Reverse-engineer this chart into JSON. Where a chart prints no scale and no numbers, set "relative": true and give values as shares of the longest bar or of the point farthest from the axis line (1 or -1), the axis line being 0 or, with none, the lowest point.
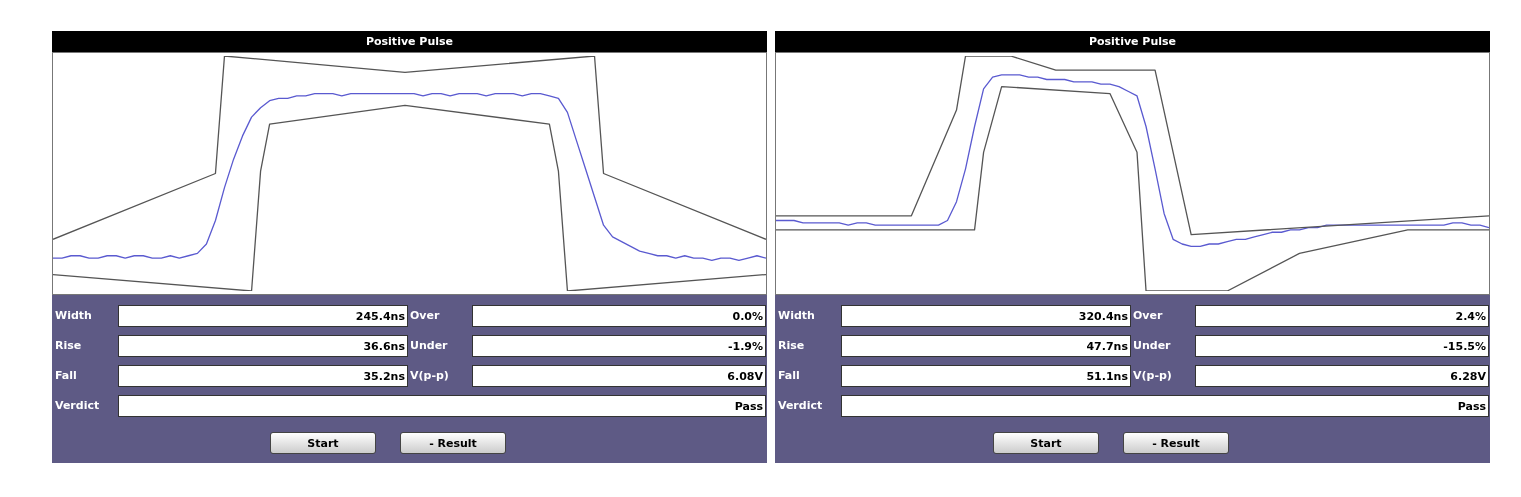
{
  "chart_data": [
    {
      "type": "line",
      "title": "Positive Pulse",
      "relative": true,
      "categories": [
        null,
        null,
        null,
        null,
        null,
        null,
        null,
        null,
        null,
        null,
        null,
        null,
        null,
        null,
        null,
        null,
        null,
        null,
        null,
        null,
        null,
        null,
        null,
        null,
        null,
        null,
        null,
        null,
        null,
        null,
        null,
        null,
        null,
        null,
        null,
        null,
        null,
        null,
        null,
        null,
        null,
        null,
        null,
        null,
        null,
        null,
        null,
        null,
        null,
        null,
        null,
        null,
        null,
        null,
        null,
        null,
        null,
        null,
        null,
        null,
        null,
        null,
        null,
        null,
        null,
        null,
        null,
        null,
        null,
        null,
        null,
        null,
        null,
        null,
        null,
        null,
        null,
        null,
        null,
        null
      ],
      "series": [
        {
          "color": "#555555",
          "values": [
            0.22,
            null,
            null,
            null,
            null,
            null,
            null,
            null,
            null,
            null,
            null,
            null,
            null,
            null,
            null,
            null,
            null,
            null,
            0.5,
            1,
            null,
            null,
            null,
            null,
            null,
            null,
            null,
            null,
            null,
            null,
            null,
            null,
            null,
            null,
            null,
            null,
            null,
            null,
            null,
            0.93,
            null,
            null,
            null,
            null,
            null,
            null,
            null,
            null,
            null,
            null,
            null,
            null,
            null,
            null,
            null,
            null,
            null,
            null,
            null,
            null,
            1,
            0.5,
            null,
            null,
            null,
            null,
            null,
            null,
            null,
            null,
            null,
            null,
            null,
            null,
            null,
            null,
            null,
            null,
            null,
            0.22
          ]
        },
        {
          "color": "#555555",
          "values": [
            0.07,
            null,
            null,
            null,
            null,
            null,
            null,
            null,
            null,
            null,
            null,
            null,
            null,
            null,
            null,
            null,
            null,
            null,
            null,
            null,
            null,
            null,
            0,
            0.51,
            0.71,
            null,
            null,
            null,
            null,
            null,
            null,
            null,
            null,
            null,
            null,
            null,
            null,
            null,
            null,
            0.79,
            null,
            null,
            null,
            null,
            null,
            null,
            null,
            null,
            null,
            null,
            null,
            null,
            null,
            null,
            null,
            0.71,
            0.51,
            0,
            null,
            null,
            null,
            null,
            null,
            null,
            null,
            null,
            null,
            null,
            null,
            null,
            null,
            null,
            null,
            null,
            null,
            null,
            null,
            null,
            null,
            0.07
          ]
        },
        {
          "color": "#5a5ad0",
          "values": [
            0.14,
            0.14,
            0.15,
            0.15,
            0.14,
            0.14,
            0.15,
            0.15,
            0.14,
            0.15,
            0.15,
            0.14,
            0.14,
            0.15,
            0.14,
            0.15,
            0.16,
            0.2,
            0.3,
            0.44,
            0.56,
            0.66,
            0.74,
            0.78,
            0.81,
            0.82,
            0.82,
            0.83,
            0.83,
            0.84,
            0.84,
            0.84,
            0.83,
            0.84,
            0.84,
            0.84,
            0.84,
            0.84,
            0.84,
            0.84,
            0.84,
            0.83,
            0.84,
            0.84,
            0.83,
            0.84,
            0.84,
            0.84,
            0.83,
            0.84,
            0.84,
            0.84,
            0.83,
            0.84,
            0.84,
            0.83,
            0.82,
            0.76,
            0.64,
            0.52,
            0.4,
            0.28,
            0.23,
            0.21,
            0.19,
            0.17,
            0.16,
            0.15,
            0.15,
            0.14,
            0.15,
            0.14,
            0.14,
            0.13,
            0.14,
            0.14,
            0.13,
            0.14,
            0.15,
            0.14
          ]
        }
      ]
    },
    {
      "type": "other",
      "annotations": [
        "Width",
        "245.4ns",
        "Over",
        "0.0%",
        "Rise",
        "36.6ns",
        "Under",
        "-1.9%",
        "Fall",
        "35.2ns",
        "V(p-p)",
        "6.08V",
        "Verdict",
        "Pass",
        "Start",
        "- Result"
      ]
    },
    {
      "type": "line",
      "title": "Positive Pulse",
      "relative": true,
      "categories": [
        null,
        null,
        null,
        null,
        null,
        null,
        null,
        null,
        null,
        null,
        null,
        null,
        null,
        null,
        null,
        null,
        null,
        null,
        null,
        null,
        null,
        null,
        null,
        null,
        null,
        null,
        null,
        null,
        null,
        null,
        null,
        null,
        null,
        null,
        null,
        null,
        null,
        null,
        null,
        null,
        null,
        null,
        null,
        null,
        null,
        null,
        null,
        null,
        null,
        null,
        null,
        null,
        null,
        null,
        null,
        null,
        null,
        null,
        null,
        null,
        null,
        null,
        null,
        null,
        null,
        null,
        null,
        null,
        null,
        null,
        null,
        null,
        null,
        null,
        null,
        null,
        null,
        null,
        null,
        null
      ],
      "series": [
        {
          "color": "#555555",
          "values": [
            0.32,
            null,
            null,
            null,
            null,
            null,
            null,
            null,
            null,
            null,
            null,
            null,
            null,
            null,
            null,
            0.32,
            null,
            null,
            null,
            null,
            0.77,
            1,
            null,
            null,
            null,
            null,
            1,
            null,
            null,
            null,
            null,
            0.94,
            null,
            null,
            null,
            null,
            null,
            null,
            null,
            null,
            null,
            null,
            0.94,
            null,
            null,
            null,
            0.24,
            null,
            null,
            null,
            null,
            null,
            null,
            null,
            null,
            null,
            null,
            null,
            null,
            null,
            null,
            null,
            null,
            null,
            null,
            null,
            null,
            null,
            null,
            null,
            null,
            null,
            null,
            null,
            null,
            null,
            null,
            null,
            null,
            0.32
          ]
        },
        {
          "color": "#555555",
          "values": [
            0.26,
            null,
            null,
            null,
            null,
            null,
            null,
            null,
            null,
            null,
            null,
            null,
            null,
            null,
            null,
            null,
            null,
            null,
            null,
            null,
            null,
            null,
            0.26,
            0.59,
            null,
            0.87,
            null,
            null,
            null,
            null,
            null,
            null,
            null,
            null,
            null,
            null,
            null,
            0.84,
            null,
            null,
            0.59,
            0,
            null,
            null,
            null,
            null,
            null,
            null,
            null,
            null,
            0,
            null,
            null,
            null,
            null,
            null,
            null,
            null,
            0.16,
            null,
            null,
            null,
            null,
            null,
            null,
            null,
            null,
            null,
            null,
            null,
            0.26,
            null,
            null,
            null,
            null,
            null,
            null,
            null,
            null,
            0.26
          ]
        },
        {
          "color": "#5a5ad0",
          "values": [
            0.3,
            0.3,
            0.3,
            0.29,
            0.29,
            0.29,
            0.29,
            0.29,
            0.28,
            0.29,
            0.29,
            0.28,
            0.28,
            0.28,
            0.28,
            0.28,
            0.28,
            0.28,
            0.28,
            0.3,
            0.38,
            0.52,
            0.7,
            0.86,
            0.91,
            0.92,
            0.92,
            0.92,
            0.91,
            0.91,
            0.9,
            0.9,
            0.9,
            0.89,
            0.89,
            0.89,
            0.88,
            0.88,
            0.87,
            0.85,
            0.83,
            0.7,
            0.52,
            0.33,
            0.22,
            0.2,
            0.19,
            0.19,
            0.2,
            0.2,
            0.21,
            0.22,
            0.22,
            0.23,
            0.24,
            0.25,
            0.25,
            0.26,
            0.26,
            0.27,
            0.27,
            0.28,
            0.28,
            0.28,
            0.28,
            0.28,
            0.28,
            0.28,
            0.28,
            0.28,
            0.28,
            0.28,
            0.28,
            0.28,
            0.28,
            0.29,
            0.29,
            0.28,
            0.28,
            0.27
          ]
        }
      ]
    },
    {
      "type": "other",
      "annotations": [
        "Width",
        "320.4ns",
        "Over",
        "2.4%",
        "Rise",
        "47.7ns",
        "Under",
        "-15.5%",
        "Fall",
        "51.1ns",
        "V(p-p)",
        "6.28V",
        "Verdict",
        "Pass",
        "Start",
        "- Result"
      ]
    }
  ]
}
